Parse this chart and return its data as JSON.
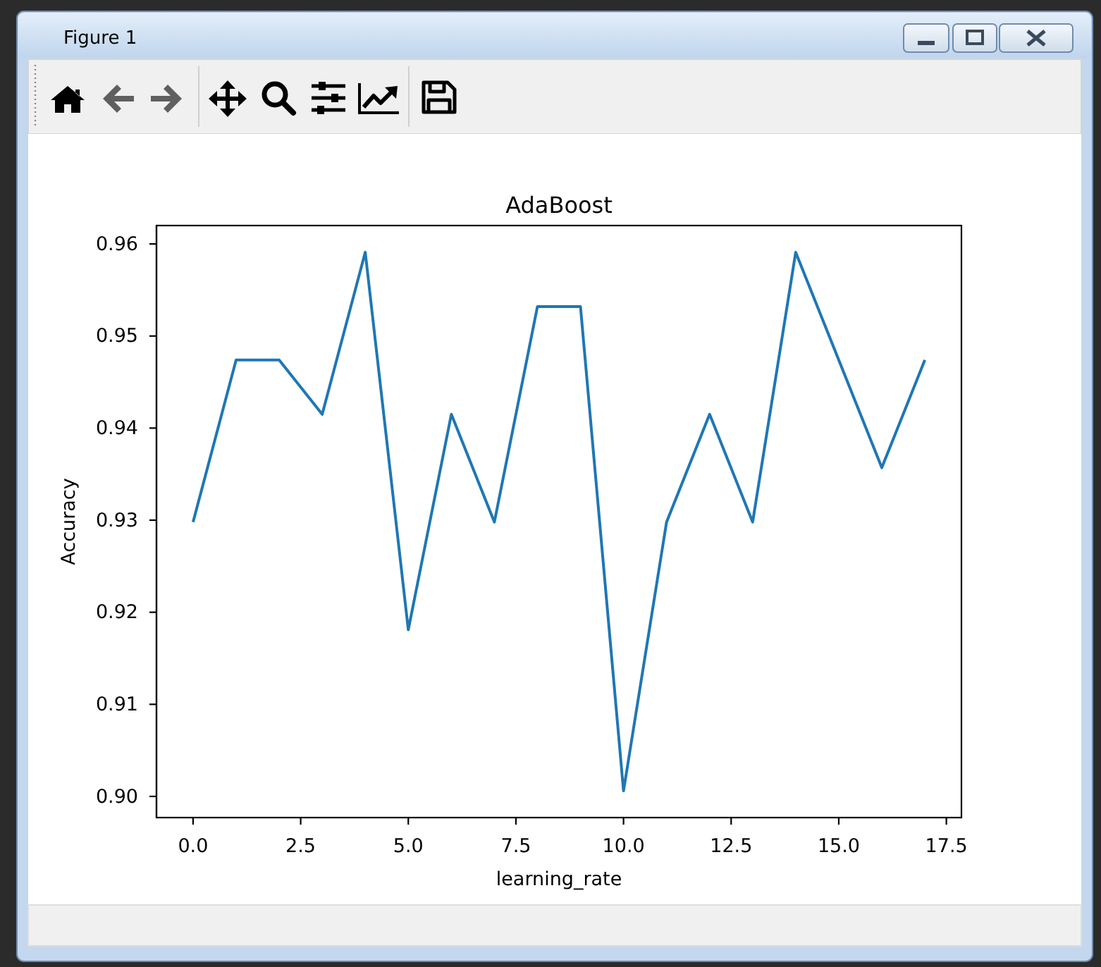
{
  "chart_data": {
    "type": "line",
    "title": "AdaBoost",
    "xlabel": "learning_rate",
    "ylabel": "Accuracy",
    "annotations": [
      "Figure 1"
    ],
    "x": [
      0,
      1,
      2,
      3,
      4,
      5,
      6,
      7,
      8,
      9,
      10,
      11,
      12,
      13,
      14,
      15,
      16,
      17
    ],
    "series": [
      {
        "color": "#1f77b4",
        "values": [
          0.9298,
          0.9474,
          0.9474,
          0.9415,
          0.9591,
          0.9181,
          0.9415,
          0.9298,
          0.9532,
          0.9532,
          0.9006,
          0.9298,
          0.9415,
          0.9298,
          0.9591,
          0.9474,
          0.9357,
          0.9474
        ]
      }
    ],
    "xlim": [
      -0.85,
      17.85
    ],
    "ylim": [
      0.8977,
      0.962
    ],
    "xticks": [
      {
        "value": 0,
        "label": "0.0"
      },
      2.5,
      {
        "value": 5,
        "label": "5.0"
      },
      7.5,
      {
        "value": 10,
        "label": "10.0"
      },
      12.5,
      {
        "value": 15,
        "label": "15.0"
      },
      17.5
    ],
    "yticks": [
      {
        "value": 0.9,
        "label": "0.90"
      },
      0.91,
      0.92,
      0.93,
      0.94,
      0.95,
      0.96
    ]
  }
}
